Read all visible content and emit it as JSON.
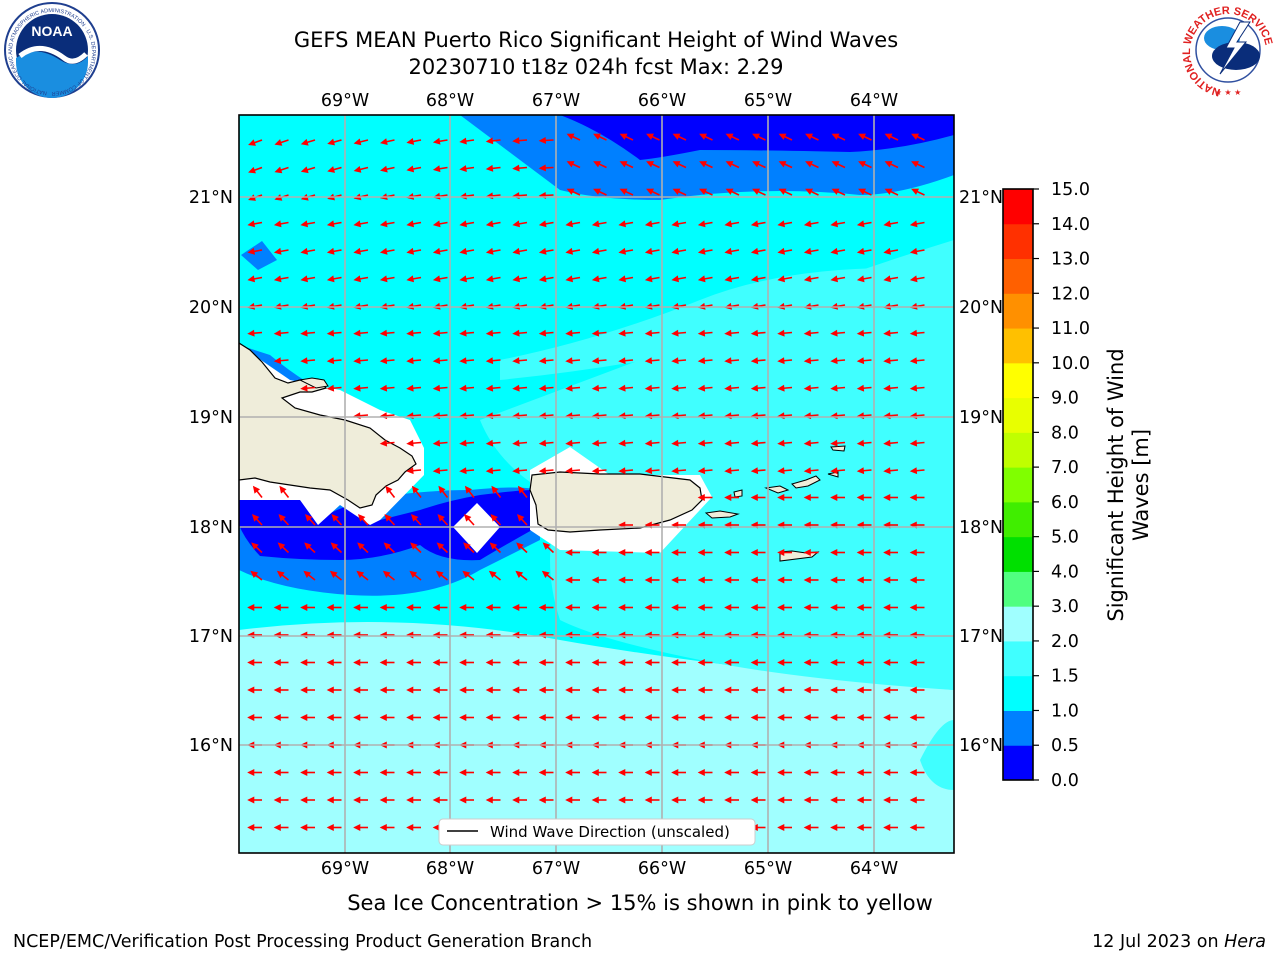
{
  "header": {
    "title_line1": "GEFS MEAN Puerto Rico Significant Height of Wind Waves",
    "title_line2": "20230710 t18z 024h fcst   Max: 2.29"
  },
  "logos": {
    "left": {
      "text": "NOAA",
      "ring_text": "NATIONAL OCEANIC AND ATMOSPHERIC ADMINISTRATION · U.S. DEPARTMENT OF COMMERCE"
    },
    "right": {
      "ring_text": "NATIONAL WEATHER SERVICE"
    }
  },
  "map": {
    "lon_ticks": [
      "69°W",
      "68°W",
      "67°W",
      "66°W",
      "65°W",
      "64°W"
    ],
    "lat_ticks": [
      "21°N",
      "20°N",
      "19°N",
      "18°N",
      "17°N",
      "16°N"
    ],
    "legend_label": "Wind Wave Direction (unscaled)",
    "colors": {
      "land": "#efedda",
      "ice_mask": "#ffffff",
      "arrow": "#ff0000",
      "grid": "#b0b0b0"
    }
  },
  "colorbar": {
    "label": "Significant Height of Wind Waves [m]",
    "label_line1": "Significant Height of Wind",
    "label_line2": "Waves [m]",
    "ticks": [
      "0.0",
      "0.5",
      "1.0",
      "1.5",
      "2.0",
      "3.0",
      "4.0",
      "5.0",
      "6.0",
      "7.0",
      "8.0",
      "9.0",
      "10.0",
      "11.0",
      "12.0",
      "13.0",
      "14.0",
      "15.0"
    ],
    "colors": [
      "#0000ff",
      "#0080ff",
      "#00ffff",
      "#40ffff",
      "#a0ffff",
      "#50ff80",
      "#00e000",
      "#40ee00",
      "#80ff00",
      "#c0ff00",
      "#e8ff00",
      "#ffff00",
      "#ffc000",
      "#ff9000",
      "#ff6000",
      "#ff3000",
      "#ff0000"
    ]
  },
  "footer": {
    "subtitle": "Sea Ice Concentration > 15% is shown in pink to yellow",
    "left": "NCEP/EMC/Verification Post Processing Product Generation Branch",
    "right_date": "12 Jul 2023 on",
    "right_host": "Hera"
  }
}
